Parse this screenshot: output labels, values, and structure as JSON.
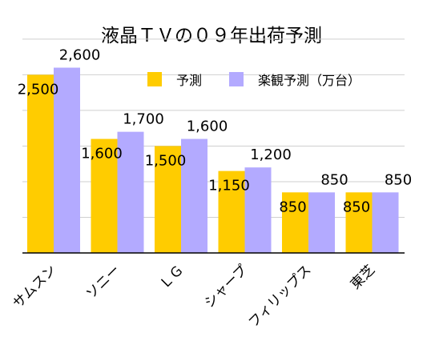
{
  "chart_data": {
    "type": "bar",
    "title": "液晶ＴＶの０９年出荷予測",
    "categories": [
      "サムスン",
      "ソニー",
      "ＬＧ",
      "シャープ",
      "フィリップス",
      "東芝"
    ],
    "series": [
      {
        "name": "予測",
        "values": [
          2500,
          1600,
          1500,
          1150,
          850,
          850
        ],
        "labels": [
          "2,500",
          "1,600",
          "1,500",
          "1,150",
          "850",
          "850"
        ],
        "color": "#ffcc00"
      },
      {
        "name": "楽観予測（万台）",
        "values": [
          2600,
          1700,
          1600,
          1200,
          850,
          850
        ],
        "labels": [
          "2,600",
          "1,700",
          "1,600",
          "1,200",
          "850",
          "850"
        ],
        "color": "#b3aaff"
      }
    ],
    "ylim": [
      0,
      3100
    ],
    "yticks": [
      500,
      1000,
      1500,
      2000,
      2500,
      3000
    ],
    "xlabel": "",
    "ylabel": "",
    "grid": true,
    "legend": "top-right"
  }
}
